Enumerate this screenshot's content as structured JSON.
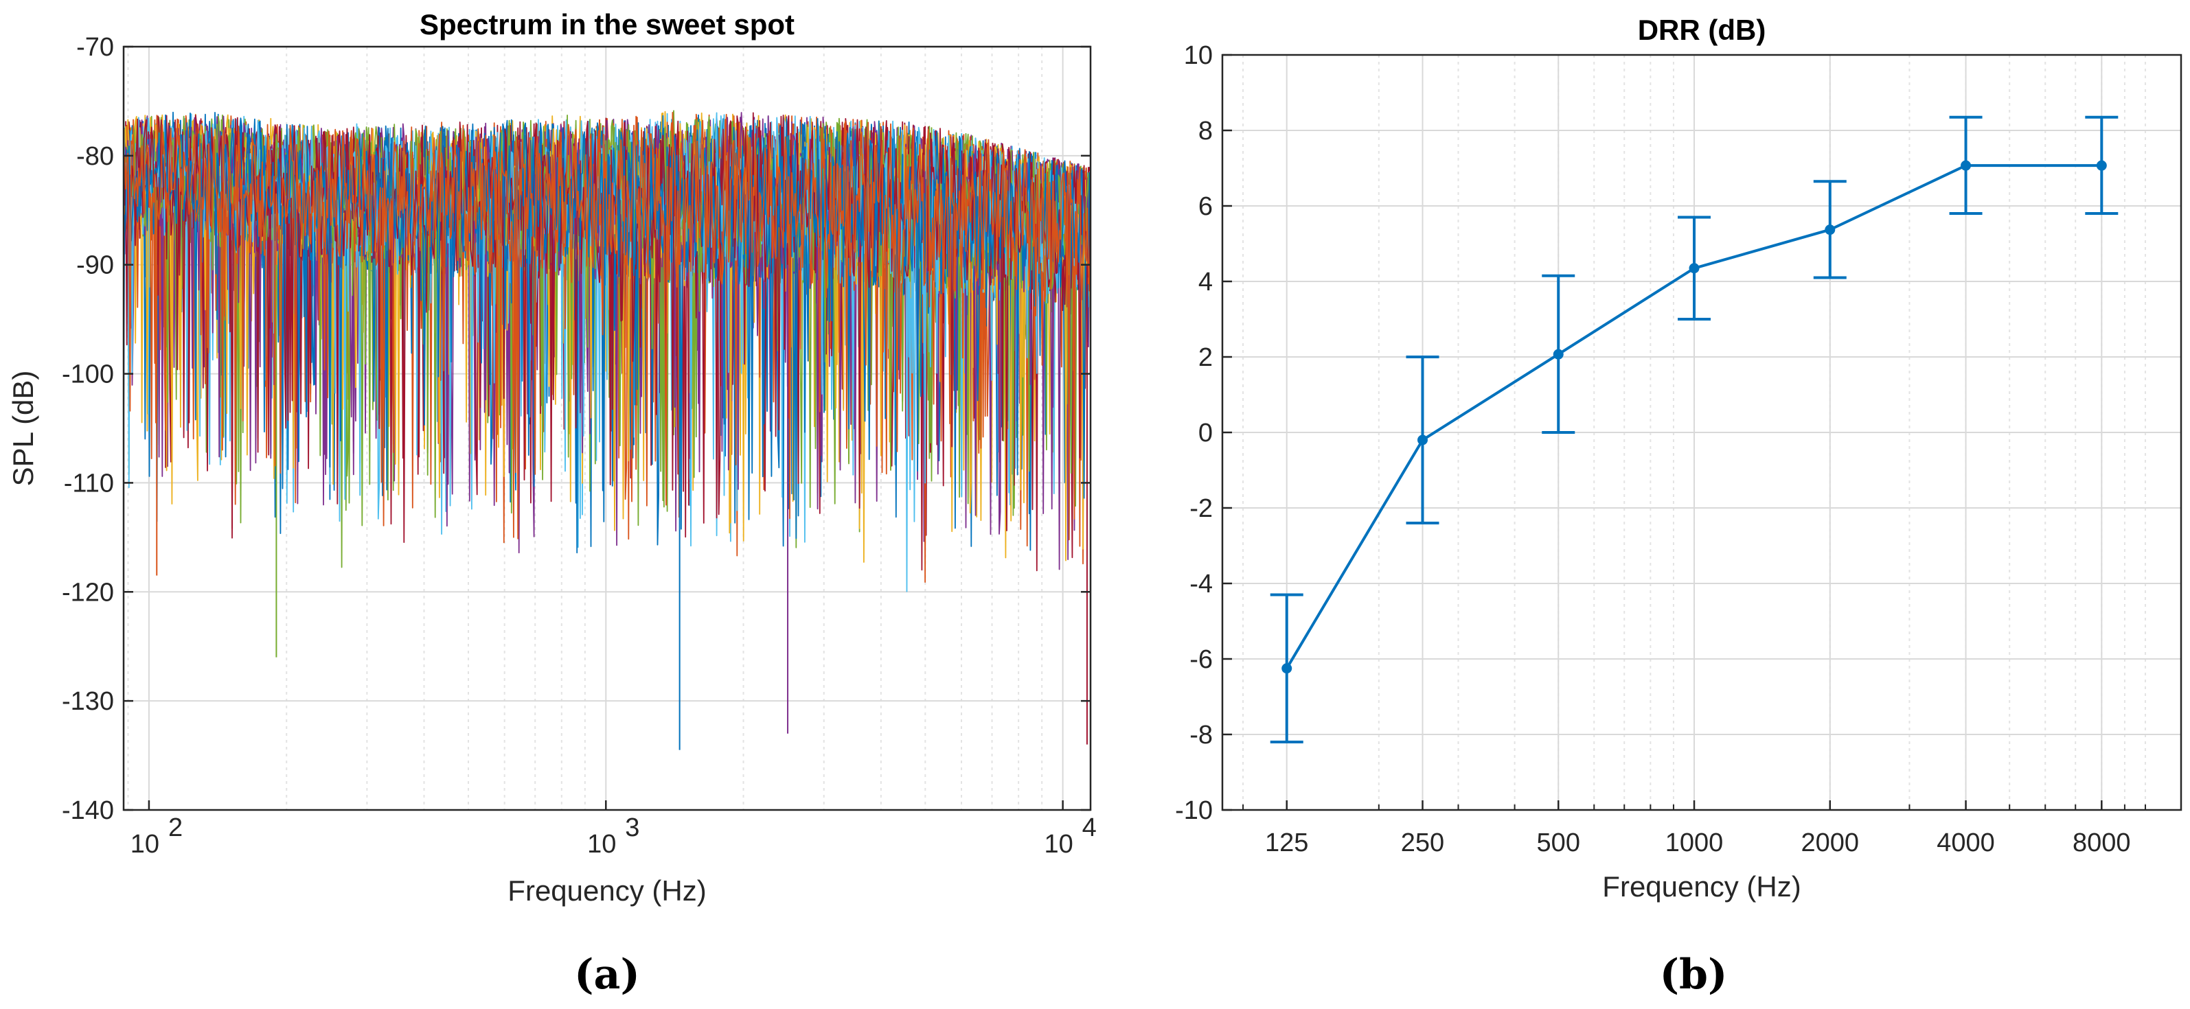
{
  "chart_data": [
    {
      "type": "line",
      "panel": "(a)",
      "title": "Spectrum in the sweet spot",
      "xlabel": "Frequency (Hz)",
      "ylabel": "SPL (dB)",
      "xscale": "log",
      "xlim": [
        88,
        11500
      ],
      "ylim": [
        -140,
        -70
      ],
      "xticks": [
        {
          "value": 100,
          "base": "10",
          "exp": "2"
        },
        {
          "value": 1000,
          "base": "10",
          "exp": "3"
        },
        {
          "value": 10000,
          "base": "10",
          "exp": "4"
        }
      ],
      "yticks": [
        "-70",
        "-80",
        "-90",
        "-100",
        "-110",
        "-120",
        "-130",
        "-140"
      ],
      "grid": true,
      "legend": "none",
      "series_count": 30,
      "series_colors": [
        "#0072BD",
        "#D95319",
        "#EDB120",
        "#7E2F8E",
        "#77AC30",
        "#4DBEEE",
        "#A2142F"
      ],
      "envelope_description": {
        "upper_envelope_x": [
          88,
          100,
          118,
          130,
          200,
          400,
          1000,
          2000,
          5000,
          11500
        ],
        "upper_envelope_y": [
          -74,
          -76,
          -70.5,
          -74,
          -77,
          -76,
          -75.5,
          -76,
          -77,
          -81
        ],
        "typical_mean_x": [
          88,
          130,
          300,
          1000,
          3000,
          11500
        ],
        "typical_mean_y": [
          -82,
          -82,
          -84,
          -84,
          -84,
          -86
        ],
        "deepest_dips": [
          {
            "x": 104,
            "y": -118.5
          },
          {
            "x": 190,
            "y": -126
          },
          {
            "x": 1450,
            "y": -134.5
          },
          {
            "x": 2500,
            "y": -133
          },
          {
            "x": 11300,
            "y": -134
          }
        ]
      }
    },
    {
      "type": "line",
      "panel": "(b)",
      "title": "DRR (dB)",
      "xlabel": "Frequency (Hz)",
      "ylabel": "",
      "xscale": "log2",
      "categories": [
        "125",
        "250",
        "500",
        "1000",
        "2000",
        "4000",
        "8000"
      ],
      "x": [
        125,
        250,
        500,
        1000,
        2000,
        4000,
        8000
      ],
      "series": [
        {
          "values": [
            -6.25,
            -0.2,
            2.07,
            4.35,
            5.37,
            7.07,
            7.07
          ],
          "error_lower": [
            -8.2,
            -2.4,
            0.0,
            3.0,
            4.1,
            5.8,
            5.8
          ],
          "error_upper": [
            -4.3,
            2.0,
            4.15,
            5.7,
            6.65,
            8.35,
            8.35
          ],
          "color": "#0072BD"
        }
      ],
      "xlim": [
        90,
        12000
      ],
      "ylim": [
        -10,
        10
      ],
      "yticks": [
        "10",
        "8",
        "6",
        "4",
        "2",
        "0",
        "-2",
        "-4",
        "-6",
        "-8",
        "-10"
      ],
      "grid": true,
      "legend": "none"
    }
  ],
  "labels": {
    "panel_a": "(a)",
    "panel_b": "(b)"
  }
}
